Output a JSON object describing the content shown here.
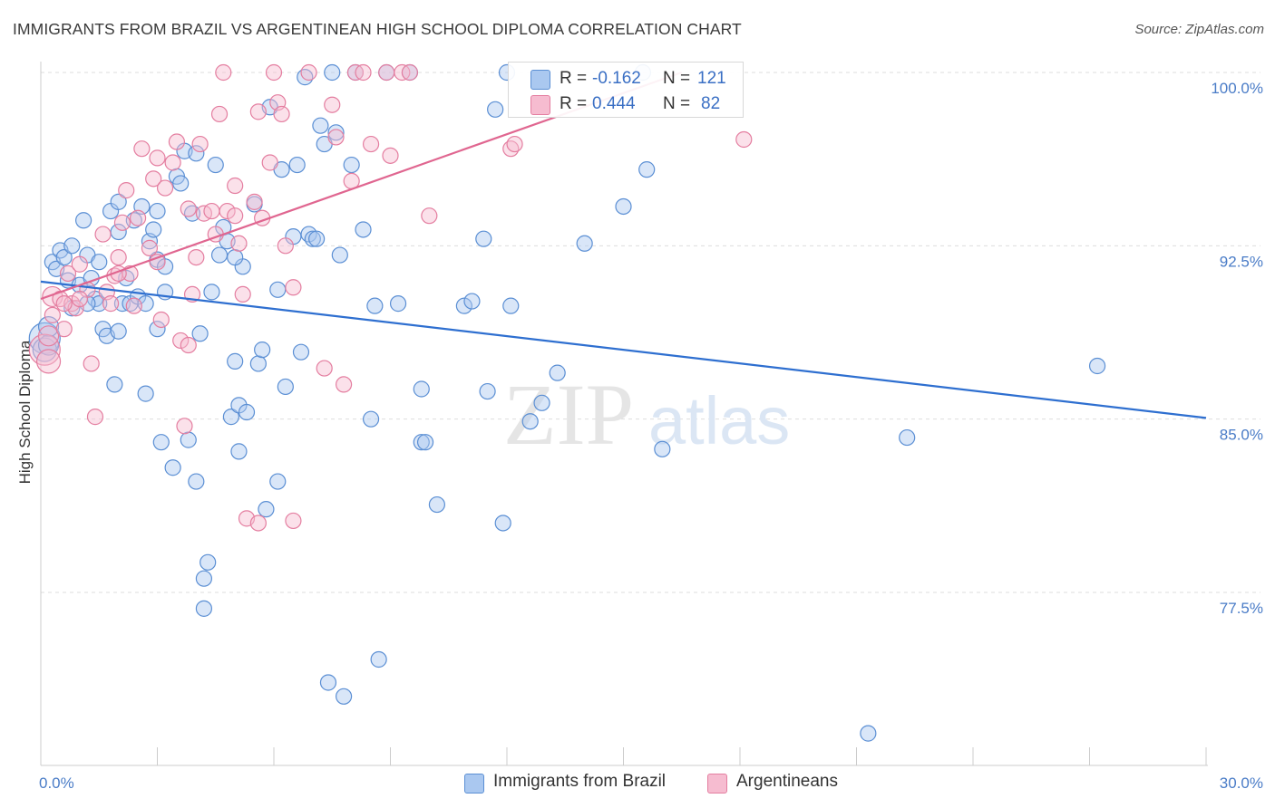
{
  "title": "IMMIGRANTS FROM BRAZIL VS ARGENTINEAN HIGH SCHOOL DIPLOMA CORRELATION CHART",
  "source": "Source: ZipAtlas.com",
  "watermark": {
    "zip": "ZIP",
    "atlas": "atlas"
  },
  "colors": {
    "blue_fill": "#aac8f0",
    "blue_stroke": "#5b8fd4",
    "blue_line": "#2e6fd0",
    "pink_fill": "#f6bcd0",
    "pink_stroke": "#e47ea0",
    "pink_line": "#e06690",
    "grid": "#dddddd",
    "axis_text": "#4a7cc7"
  },
  "stats": {
    "blue": {
      "r_label": "R =",
      "r_value": "-0.162",
      "n_label": "N =",
      "n_value": "121"
    },
    "pink": {
      "r_label": "R =",
      "r_value": "0.444",
      "n_label": "N =",
      "n_value": "82"
    }
  },
  "legend": {
    "blue": "Immigrants from Brazil",
    "pink": "Argentineans"
  },
  "chart_data": {
    "type": "scatter",
    "title": "IMMIGRANTS FROM BRAZIL VS ARGENTINEAN HIGH SCHOOL DIPLOMA CORRELATION CHART",
    "xlabel": "",
    "ylabel": "High School Diploma",
    "xlim": [
      0,
      30
    ],
    "ylim": [
      71.0,
      101.0
    ],
    "x_tick_labels": [
      "0.0%",
      "30.0%"
    ],
    "y_ticks": [
      77.5,
      85.0,
      92.5,
      100.0
    ],
    "y_tick_labels": [
      "77.5%",
      "85.0%",
      "92.5%",
      "100.0%"
    ],
    "grid": true,
    "legend_position": "bottom",
    "series": [
      {
        "name": "Immigrants from Brazil",
        "color": "#aac8f0",
        "trend": {
          "x": [
            0,
            30
          ],
          "y": [
            90.95,
            85.05
          ]
        },
        "points": [
          [
            0.1,
            88.5
          ],
          [
            0.1,
            88.0
          ],
          [
            0.2,
            89.0
          ],
          [
            0.2,
            88.2
          ],
          [
            0.3,
            91.8
          ],
          [
            0.4,
            91.5
          ],
          [
            0.5,
            92.3
          ],
          [
            0.6,
            92.0
          ],
          [
            0.7,
            91.0
          ],
          [
            0.8,
            92.5
          ],
          [
            1.0,
            90.8
          ],
          [
            1.1,
            93.6
          ],
          [
            1.2,
            92.1
          ],
          [
            1.3,
            91.1
          ],
          [
            1.4,
            90.2
          ],
          [
            1.5,
            90.0
          ],
          [
            1.5,
            91.8
          ],
          [
            1.6,
            88.9
          ],
          [
            1.7,
            88.6
          ],
          [
            1.8,
            94.0
          ],
          [
            1.9,
            86.5
          ],
          [
            2.0,
            88.8
          ],
          [
            2.0,
            94.4
          ],
          [
            2.1,
            90.0
          ],
          [
            2.2,
            91.1
          ],
          [
            2.3,
            90.0
          ],
          [
            2.4,
            93.6
          ],
          [
            2.5,
            90.3
          ],
          [
            2.6,
            94.2
          ],
          [
            2.7,
            90.0
          ],
          [
            2.7,
            86.1
          ],
          [
            2.8,
            92.7
          ],
          [
            2.9,
            93.2
          ],
          [
            3.0,
            88.9
          ],
          [
            3.0,
            91.9
          ],
          [
            3.1,
            84.0
          ],
          [
            3.2,
            90.5
          ],
          [
            3.2,
            91.6
          ],
          [
            3.4,
            82.9
          ],
          [
            3.5,
            95.5
          ],
          [
            3.6,
            95.2
          ],
          [
            3.7,
            96.6
          ],
          [
            3.8,
            84.1
          ],
          [
            3.9,
            93.9
          ],
          [
            4.0,
            82.3
          ],
          [
            4.1,
            88.7
          ],
          [
            4.2,
            78.1
          ],
          [
            4.2,
            76.8
          ],
          [
            4.3,
            78.8
          ],
          [
            4.4,
            90.5
          ],
          [
            4.5,
            96.0
          ],
          [
            4.6,
            92.1
          ],
          [
            4.7,
            93.3
          ],
          [
            4.8,
            92.7
          ],
          [
            4.9,
            85.1
          ],
          [
            5.0,
            87.5
          ],
          [
            5.1,
            83.6
          ],
          [
            5.1,
            85.6
          ],
          [
            5.2,
            91.6
          ],
          [
            5.3,
            85.3
          ],
          [
            5.5,
            94.3
          ],
          [
            5.6,
            87.4
          ],
          [
            5.7,
            88.0
          ],
          [
            5.8,
            81.1
          ],
          [
            5.9,
            98.5
          ],
          [
            6.1,
            90.6
          ],
          [
            6.1,
            82.3
          ],
          [
            6.2,
            95.8
          ],
          [
            6.3,
            86.4
          ],
          [
            6.5,
            92.9
          ],
          [
            6.6,
            96.0
          ],
          [
            6.7,
            87.9
          ],
          [
            6.9,
            93.0
          ],
          [
            7.0,
            92.8
          ],
          [
            7.1,
            92.8
          ],
          [
            7.2,
            97.7
          ],
          [
            7.4,
            73.6
          ],
          [
            7.5,
            100.0
          ],
          [
            7.6,
            97.4
          ],
          [
            7.7,
            92.1
          ],
          [
            7.8,
            73.0
          ],
          [
            8.0,
            96.0
          ],
          [
            8.1,
            100.0
          ],
          [
            8.3,
            93.2
          ],
          [
            8.5,
            85.0
          ],
          [
            8.6,
            89.9
          ],
          [
            8.7,
            74.6
          ],
          [
            9.2,
            90.0
          ],
          [
            9.8,
            86.3
          ],
          [
            9.8,
            84.0
          ],
          [
            9.9,
            84.0
          ],
          [
            10.2,
            81.3
          ],
          [
            10.9,
            89.9
          ],
          [
            11.1,
            90.1
          ],
          [
            11.4,
            92.8
          ],
          [
            11.5,
            86.2
          ],
          [
            11.7,
            98.4
          ],
          [
            11.9,
            80.5
          ],
          [
            12.0,
            100.0
          ],
          [
            12.1,
            89.9
          ],
          [
            12.6,
            84.9
          ],
          [
            12.9,
            85.7
          ],
          [
            13.3,
            87.0
          ],
          [
            14.0,
            92.6
          ],
          [
            15.0,
            94.2
          ],
          [
            15.6,
            95.8
          ],
          [
            16.0,
            83.7
          ],
          [
            21.3,
            71.4
          ],
          [
            22.3,
            84.2
          ],
          [
            27.2,
            87.3
          ],
          [
            9.5,
            100.0
          ],
          [
            8.9,
            100.0
          ],
          [
            6.8,
            99.8
          ],
          [
            4.0,
            96.5
          ],
          [
            3.0,
            94.0
          ],
          [
            2.0,
            93.1
          ],
          [
            5.0,
            92.0
          ],
          [
            1.2,
            90.0
          ],
          [
            0.8,
            89.8
          ],
          [
            15.5,
            100.0
          ],
          [
            7.3,
            96.9
          ]
        ],
        "sizes": [
          40,
          34,
          24,
          22,
          18
        ]
      },
      {
        "name": "Argentineans",
        "color": "#f6bcd0",
        "trend": {
          "x": [
            0,
            16.5
          ],
          "y": [
            90.2,
            100.0
          ]
        },
        "points": [
          [
            0.1,
            88.0
          ],
          [
            0.2,
            87.5
          ],
          [
            0.2,
            88.6
          ],
          [
            0.3,
            90.3
          ],
          [
            0.5,
            90.2
          ],
          [
            0.6,
            88.9
          ],
          [
            0.7,
            91.3
          ],
          [
            0.8,
            90.0
          ],
          [
            0.9,
            89.8
          ],
          [
            1.0,
            91.7
          ],
          [
            1.2,
            90.6
          ],
          [
            1.3,
            87.4
          ],
          [
            1.4,
            85.1
          ],
          [
            1.6,
            93.0
          ],
          [
            1.7,
            90.5
          ],
          [
            1.8,
            90.0
          ],
          [
            1.9,
            91.2
          ],
          [
            2.0,
            92.0
          ],
          [
            2.1,
            93.5
          ],
          [
            2.2,
            94.9
          ],
          [
            2.3,
            91.3
          ],
          [
            2.4,
            89.9
          ],
          [
            2.5,
            93.7
          ],
          [
            2.6,
            96.7
          ],
          [
            2.8,
            92.4
          ],
          [
            2.9,
            95.4
          ],
          [
            3.0,
            96.3
          ],
          [
            3.1,
            89.3
          ],
          [
            3.2,
            95.0
          ],
          [
            3.4,
            96.1
          ],
          [
            3.5,
            97.0
          ],
          [
            3.6,
            88.4
          ],
          [
            3.7,
            84.7
          ],
          [
            3.8,
            94.1
          ],
          [
            3.9,
            90.4
          ],
          [
            4.0,
            92.0
          ],
          [
            4.1,
            96.9
          ],
          [
            4.2,
            93.9
          ],
          [
            4.4,
            94.0
          ],
          [
            4.5,
            93.0
          ],
          [
            4.6,
            98.2
          ],
          [
            4.8,
            94.0
          ],
          [
            5.0,
            95.1
          ],
          [
            5.1,
            92.6
          ],
          [
            5.2,
            90.4
          ],
          [
            5.3,
            80.7
          ],
          [
            5.5,
            94.4
          ],
          [
            5.6,
            98.3
          ],
          [
            5.7,
            93.7
          ],
          [
            5.9,
            96.1
          ],
          [
            6.1,
            98.7
          ],
          [
            6.2,
            98.2
          ],
          [
            6.3,
            92.5
          ],
          [
            6.5,
            90.7
          ],
          [
            6.9,
            100.0
          ],
          [
            7.3,
            87.2
          ],
          [
            7.5,
            98.6
          ],
          [
            7.6,
            97.2
          ],
          [
            7.8,
            86.5
          ],
          [
            8.0,
            95.3
          ],
          [
            8.1,
            100.0
          ],
          [
            8.3,
            100.0
          ],
          [
            8.5,
            96.9
          ],
          [
            8.9,
            100.0
          ],
          [
            9.0,
            96.4
          ],
          [
            9.3,
            100.0
          ],
          [
            9.5,
            100.0
          ],
          [
            10.0,
            93.8
          ],
          [
            12.1,
            96.7
          ],
          [
            12.2,
            96.9
          ],
          [
            18.1,
            97.1
          ],
          [
            6.0,
            100.0
          ],
          [
            4.7,
            100.0
          ],
          [
            6.5,
            80.6
          ],
          [
            5.6,
            80.5
          ],
          [
            1.0,
            90.2
          ],
          [
            2.0,
            91.3
          ],
          [
            3.8,
            88.2
          ],
          [
            5.0,
            93.8
          ],
          [
            3.0,
            91.8
          ],
          [
            0.6,
            90.0
          ],
          [
            0.3,
            89.5
          ]
        ],
        "sizes": [
          40,
          30,
          22,
          20,
          18
        ]
      }
    ]
  }
}
